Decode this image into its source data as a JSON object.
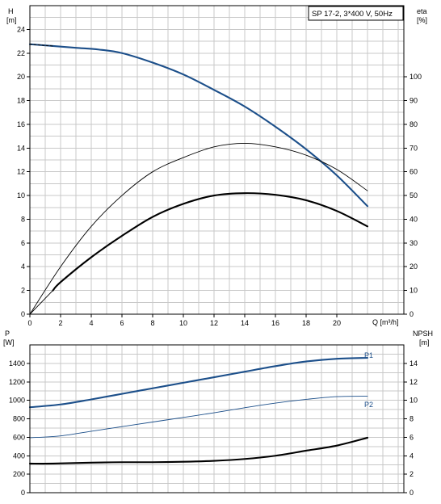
{
  "chart_data": [
    {
      "type": "line",
      "title": "SP 17-2, 3*400 V, 50Hz",
      "xlabel": "Q [m³/h]",
      "xlabel_name": "Q",
      "xlabel_unit": "[m³/h]",
      "ylabel_left_name": "H",
      "ylabel_left_unit": "[m]",
      "ylabel_right_name": "eta",
      "ylabel_right_unit": "[%]",
      "xlim": [
        0,
        24
      ],
      "ylim_left": [
        0,
        26
      ],
      "ylim_right": [
        0,
        130
      ],
      "x_ticks": [
        "0",
        "2",
        "4",
        "6",
        "8",
        "10",
        "12",
        "14",
        "16",
        "18",
        "20"
      ],
      "y_ticks_left": [
        "0",
        "2",
        "4",
        "6",
        "8",
        "10",
        "12",
        "14",
        "16",
        "18",
        "20",
        "22",
        "24"
      ],
      "y_ticks_right": [
        "0",
        "10",
        "20",
        "30",
        "40",
        "50",
        "60",
        "70",
        "80",
        "90",
        "100"
      ],
      "grid": true,
      "series": [
        {
          "axis": "left",
          "color": "#1c4f8a",
          "style": "thick",
          "x": [
            0,
            1.5,
            3,
            4.5,
            6,
            8,
            10,
            12,
            14,
            16,
            18,
            20,
            22
          ],
          "y": [
            22.75,
            22.6,
            22.45,
            22.3,
            22.0,
            21.2,
            20.2,
            18.9,
            17.5,
            15.8,
            13.9,
            11.7,
            9.1
          ]
        },
        {
          "axis": "left",
          "color": "#000000",
          "style": "dashed-thin",
          "x": [
            0,
            1.5
          ],
          "y": [
            22.75,
            22.6
          ]
        },
        {
          "axis": "right",
          "color": "#000000",
          "style": "thin",
          "x": [
            0,
            2,
            4,
            6,
            8,
            10,
            12,
            14,
            16,
            18,
            20,
            22
          ],
          "y": [
            0,
            20,
            37,
            50,
            60,
            66,
            70.5,
            72,
            70.5,
            67,
            61,
            52
          ]
        },
        {
          "axis": "right",
          "color": "#000000",
          "style": "thick",
          "x": [
            1.5,
            2,
            4,
            6,
            8,
            10,
            12,
            14,
            16,
            18,
            20,
            22
          ],
          "y": [
            10,
            13.5,
            24,
            33,
            41,
            46.5,
            50,
            51,
            50.3,
            48,
            43.5,
            37
          ]
        },
        {
          "axis": "right",
          "color": "#000000",
          "style": "thin",
          "x": [
            0,
            1.5
          ],
          "y": [
            0,
            10
          ]
        }
      ]
    },
    {
      "type": "line",
      "ylabel_left_name": "P",
      "ylabel_left_unit": "[W]",
      "ylabel_right_name": "NPSH",
      "ylabel_right_unit": "[m]",
      "xlim": [
        0,
        24
      ],
      "ylim_left": [
        0,
        1600
      ],
      "ylim_right": [
        0,
        16
      ],
      "y_ticks_left": [
        "0",
        "200",
        "400",
        "600",
        "800",
        "1000",
        "1200",
        "1400"
      ],
      "y_ticks_right": [
        "0",
        "2",
        "4",
        "6",
        "8",
        "10",
        "12",
        "14"
      ],
      "grid": true,
      "series": [
        {
          "name": "P1",
          "axis": "left",
          "color": "#1c4f8a",
          "style": "thick",
          "x": [
            0,
            2,
            4,
            6,
            8,
            10,
            12,
            14,
            16,
            18,
            20,
            22
          ],
          "y": [
            925,
            955,
            1010,
            1070,
            1130,
            1190,
            1250,
            1310,
            1370,
            1420,
            1450,
            1460
          ]
        },
        {
          "name": "P2",
          "axis": "left",
          "color": "#1c4f8a",
          "style": "thin",
          "x": [
            0,
            2,
            4,
            6,
            8,
            10,
            12,
            14,
            16,
            18,
            20,
            22
          ],
          "y": [
            595,
            615,
            665,
            715,
            765,
            815,
            865,
            920,
            970,
            1010,
            1040,
            1045
          ]
        },
        {
          "axis": "right",
          "color": "#000000",
          "style": "thick",
          "x": [
            0,
            1.5,
            4,
            6,
            8,
            10,
            12,
            14,
            16,
            18,
            20,
            22
          ],
          "y": [
            3.15,
            3.15,
            3.25,
            3.3,
            3.3,
            3.35,
            3.45,
            3.65,
            4.0,
            4.55,
            5.1,
            5.95
          ]
        }
      ]
    }
  ]
}
